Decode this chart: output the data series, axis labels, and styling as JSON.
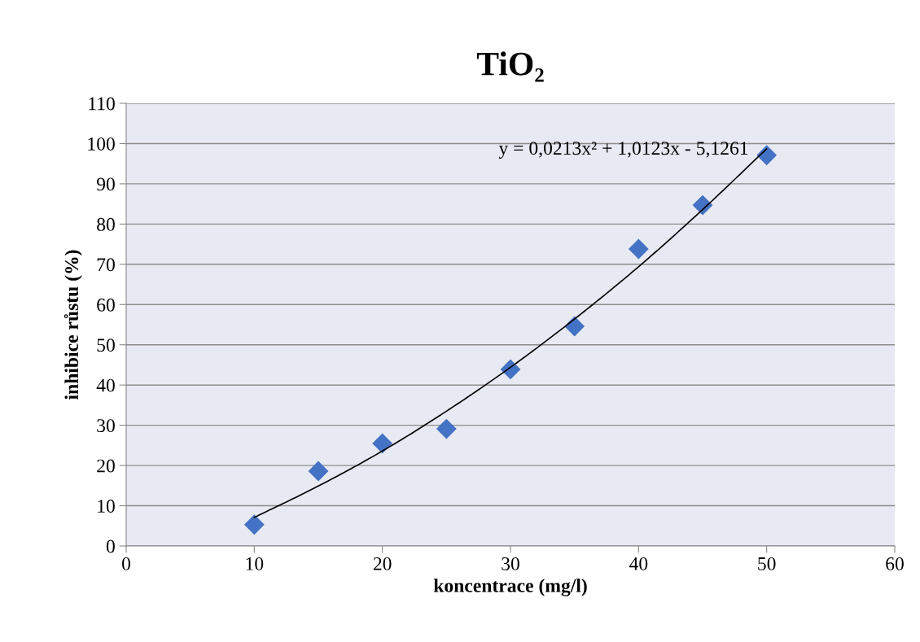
{
  "chart_data": {
    "type": "scatter",
    "title": "TiO₂",
    "xlabel": "koncentrace (mg/l)",
    "ylabel": "inhibice růstu (%)",
    "xlim": [
      0,
      60
    ],
    "xticks": [
      0,
      10,
      20,
      30,
      40,
      50,
      60
    ],
    "ylim": [
      0,
      110
    ],
    "yticks": [
      0,
      10,
      20,
      30,
      40,
      50,
      60,
      70,
      80,
      90,
      100,
      110
    ],
    "grid": "y",
    "legend": false,
    "annotations": [
      "y = 0,0213x² + 1,0123x - 5,1261"
    ],
    "series": [
      {
        "color": "#4472c4",
        "marker": "diamond",
        "x": [
          10,
          15,
          20,
          25,
          30,
          35,
          40,
          45,
          50
        ],
        "values": [
          5.3,
          18.6,
          25.5,
          29.1,
          43.9,
          54.6,
          73.8,
          84.7,
          97.1
        ]
      },
      {
        "type": "line",
        "color": "#000000",
        "marker": "none",
        "line_style": "solid",
        "x": [
          10,
          15,
          20,
          25,
          30,
          35,
          40,
          45,
          50
        ],
        "values": [
          7.1,
          14.9,
          23.6,
          33.5,
          44.4,
          56.4,
          69.4,
          83.6,
          98.7
        ]
      }
    ]
  }
}
